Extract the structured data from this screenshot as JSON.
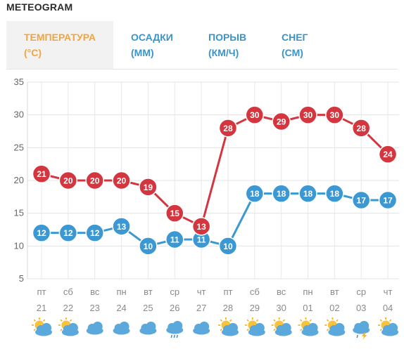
{
  "header": {
    "title": "METEOGRAM"
  },
  "tabs": [
    {
      "line1": "ТЕМПЕРАТУРА",
      "line2": "(°C)",
      "active": true
    },
    {
      "line1": "ОСАДКИ",
      "line2": "(ММ)",
      "active": false
    },
    {
      "line1": "ПОРЫВ",
      "line2": "(КМ/Ч)",
      "active": false
    },
    {
      "line1": "СНЕГ",
      "line2": "(СМ)",
      "active": false
    }
  ],
  "colors": {
    "series_red": "#d4363f",
    "series_blue": "#3b98d3",
    "active_tab": "#f0a640",
    "tab": "#3a94c9"
  },
  "chart_data": {
    "type": "line",
    "ylim": [
      5,
      35
    ],
    "yticks": [
      5,
      10,
      15,
      20,
      25,
      30,
      35
    ],
    "grid": true,
    "x": [
      {
        "dow": "пт",
        "date": "21"
      },
      {
        "dow": "сб",
        "date": "22"
      },
      {
        "dow": "вс",
        "date": "23"
      },
      {
        "dow": "пн",
        "date": "24"
      },
      {
        "dow": "вт",
        "date": "25"
      },
      {
        "dow": "ср",
        "date": "26"
      },
      {
        "dow": "чт",
        "date": "27"
      },
      {
        "dow": "пт",
        "date": "28"
      },
      {
        "dow": "сб",
        "date": "29"
      },
      {
        "dow": "вс",
        "date": "30"
      },
      {
        "dow": "пн",
        "date": "01"
      },
      {
        "dow": "вт",
        "date": "02"
      },
      {
        "dow": "ср",
        "date": "03"
      },
      {
        "dow": "чт",
        "date": "04"
      }
    ],
    "series": [
      {
        "color": "#d4363f",
        "values": [
          21,
          20,
          20,
          20,
          19,
          15,
          13,
          28,
          30,
          29,
          30,
          30,
          28,
          24
        ]
      },
      {
        "color": "#3b98d3",
        "values": [
          12,
          12,
          12,
          13,
          10,
          11,
          11,
          10,
          18,
          18,
          18,
          18,
          17,
          17
        ]
      }
    ],
    "weather_icons": [
      "partly-cloudy-icon",
      "partly-cloudy-icon",
      "cloud-icon",
      "cloud-icon",
      "cloud-icon",
      "rain-cloud-icon",
      "cloud-icon",
      "partly-cloudy-icon",
      "partly-cloudy-icon",
      "partly-cloudy-icon",
      "partly-cloudy-icon",
      "partly-cloudy-icon",
      "storm-cloud-icon",
      "partly-cloudy-icon"
    ]
  }
}
